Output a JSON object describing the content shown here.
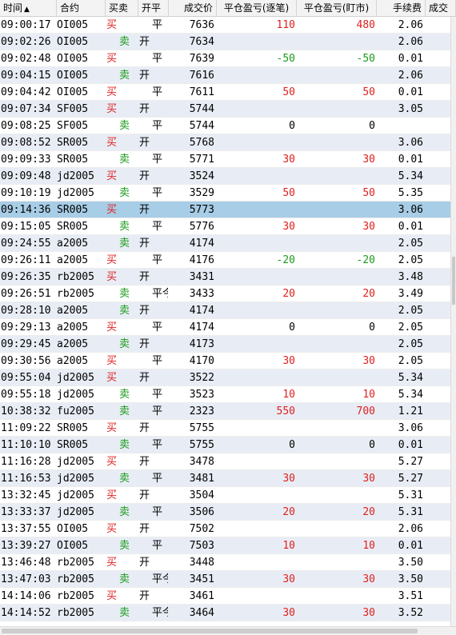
{
  "columns": {
    "time": "时间",
    "symbol": "合约",
    "buy_sell": "买卖",
    "open_close": "开平",
    "price": "成交价",
    "pnl_per_trade": "平仓盈亏(逐笔)",
    "pnl_mark": "平仓盈亏(盯市)",
    "fee": "手续费",
    "trade": "成交"
  },
  "sort_icon": "sort-ascending-icon",
  "colors": {
    "buy": "#e02020",
    "sell": "#1a9a1a",
    "selected_row": "#a8cde6",
    "alt_row": "#e8edf5"
  },
  "selected_row_index": 11,
  "rows": [
    {
      "time": "09:00:17",
      "symbol": "OI005",
      "bs": "买",
      "oc": "平",
      "price": "7636",
      "p1": "110",
      "p2": "480",
      "fee": "2.06"
    },
    {
      "time": "09:02:26",
      "symbol": "OI005",
      "bs": "卖",
      "oc": "开",
      "price": "7634",
      "p1": "",
      "p2": "",
      "fee": "2.06"
    },
    {
      "time": "09:02:48",
      "symbol": "OI005",
      "bs": "买",
      "oc": "平",
      "price": "7639",
      "p1": "-50",
      "p2": "-50",
      "fee": "0.01"
    },
    {
      "time": "09:04:15",
      "symbol": "OI005",
      "bs": "卖",
      "oc": "开",
      "price": "7616",
      "p1": "",
      "p2": "",
      "fee": "2.06"
    },
    {
      "time": "09:04:42",
      "symbol": "OI005",
      "bs": "买",
      "oc": "平",
      "price": "7611",
      "p1": "50",
      "p2": "50",
      "fee": "0.01"
    },
    {
      "time": "09:07:34",
      "symbol": "SF005",
      "bs": "买",
      "oc": "开",
      "price": "5744",
      "p1": "",
      "p2": "",
      "fee": "3.05"
    },
    {
      "time": "09:08:25",
      "symbol": "SF005",
      "bs": "卖",
      "oc": "平",
      "price": "5744",
      "p1": "0",
      "p2": "0",
      "fee": ""
    },
    {
      "time": "09:08:52",
      "symbol": "SR005",
      "bs": "买",
      "oc": "开",
      "price": "5768",
      "p1": "",
      "p2": "",
      "fee": "3.06"
    },
    {
      "time": "09:09:33",
      "symbol": "SR005",
      "bs": "卖",
      "oc": "平",
      "price": "5771",
      "p1": "30",
      "p2": "30",
      "fee": "0.01"
    },
    {
      "time": "09:09:48",
      "symbol": "jd2005",
      "bs": "买",
      "oc": "开",
      "price": "3524",
      "p1": "",
      "p2": "",
      "fee": "5.34"
    },
    {
      "time": "09:10:19",
      "symbol": "jd2005",
      "bs": "卖",
      "oc": "平",
      "price": "3529",
      "p1": "50",
      "p2": "50",
      "fee": "5.35"
    },
    {
      "time": "09:14:36",
      "symbol": "SR005",
      "bs": "买",
      "oc": "开",
      "price": "5773",
      "p1": "",
      "p2": "",
      "fee": "3.06"
    },
    {
      "time": "09:15:05",
      "symbol": "SR005",
      "bs": "卖",
      "oc": "平",
      "price": "5776",
      "p1": "30",
      "p2": "30",
      "fee": "0.01"
    },
    {
      "time": "09:24:55",
      "symbol": "a2005",
      "bs": "卖",
      "oc": "开",
      "price": "4174",
      "p1": "",
      "p2": "",
      "fee": "2.05"
    },
    {
      "time": "09:26:11",
      "symbol": "a2005",
      "bs": "买",
      "oc": "平",
      "price": "4176",
      "p1": "-20",
      "p2": "-20",
      "fee": "2.05"
    },
    {
      "time": "09:26:35",
      "symbol": "rb2005",
      "bs": "买",
      "oc": "开",
      "price": "3431",
      "p1": "",
      "p2": "",
      "fee": "3.48"
    },
    {
      "time": "09:26:51",
      "symbol": "rb2005",
      "bs": "卖",
      "oc": "平今",
      "price": "3433",
      "p1": "20",
      "p2": "20",
      "fee": "3.49"
    },
    {
      "time": "09:28:10",
      "symbol": "a2005",
      "bs": "卖",
      "oc": "开",
      "price": "4174",
      "p1": "",
      "p2": "",
      "fee": "2.05"
    },
    {
      "time": "09:29:13",
      "symbol": "a2005",
      "bs": "买",
      "oc": "平",
      "price": "4174",
      "p1": "0",
      "p2": "0",
      "fee": "2.05"
    },
    {
      "time": "09:29:45",
      "symbol": "a2005",
      "bs": "卖",
      "oc": "开",
      "price": "4173",
      "p1": "",
      "p2": "",
      "fee": "2.05"
    },
    {
      "time": "09:30:56",
      "symbol": "a2005",
      "bs": "买",
      "oc": "平",
      "price": "4170",
      "p1": "30",
      "p2": "30",
      "fee": "2.05"
    },
    {
      "time": "09:55:04",
      "symbol": "jd2005",
      "bs": "买",
      "oc": "开",
      "price": "3522",
      "p1": "",
      "p2": "",
      "fee": "5.34"
    },
    {
      "time": "09:55:18",
      "symbol": "jd2005",
      "bs": "卖",
      "oc": "平",
      "price": "3523",
      "p1": "10",
      "p2": "10",
      "fee": "5.34"
    },
    {
      "time": "10:38:32",
      "symbol": "fu2005",
      "bs": "卖",
      "oc": "平",
      "price": "2323",
      "p1": "550",
      "p2": "700",
      "fee": "1.21"
    },
    {
      "time": "11:09:22",
      "symbol": "SR005",
      "bs": "买",
      "oc": "开",
      "price": "5755",
      "p1": "",
      "p2": "",
      "fee": "3.06"
    },
    {
      "time": "11:10:10",
      "symbol": "SR005",
      "bs": "卖",
      "oc": "平",
      "price": "5755",
      "p1": "0",
      "p2": "0",
      "fee": "0.01"
    },
    {
      "time": "11:16:28",
      "symbol": "jd2005",
      "bs": "买",
      "oc": "开",
      "price": "3478",
      "p1": "",
      "p2": "",
      "fee": "5.27"
    },
    {
      "time": "11:16:53",
      "symbol": "jd2005",
      "bs": "卖",
      "oc": "平",
      "price": "3481",
      "p1": "30",
      "p2": "30",
      "fee": "5.27"
    },
    {
      "time": "13:32:45",
      "symbol": "jd2005",
      "bs": "买",
      "oc": "开",
      "price": "3504",
      "p1": "",
      "p2": "",
      "fee": "5.31"
    },
    {
      "time": "13:33:37",
      "symbol": "jd2005",
      "bs": "卖",
      "oc": "平",
      "price": "3506",
      "p1": "20",
      "p2": "20",
      "fee": "5.31"
    },
    {
      "time": "13:37:55",
      "symbol": "OI005",
      "bs": "买",
      "oc": "开",
      "price": "7502",
      "p1": "",
      "p2": "",
      "fee": "2.06"
    },
    {
      "time": "13:39:27",
      "symbol": "OI005",
      "bs": "卖",
      "oc": "平",
      "price": "7503",
      "p1": "10",
      "p2": "10",
      "fee": "0.01"
    },
    {
      "time": "13:46:48",
      "symbol": "rb2005",
      "bs": "买",
      "oc": "开",
      "price": "3448",
      "p1": "",
      "p2": "",
      "fee": "3.50"
    },
    {
      "time": "13:47:03",
      "symbol": "rb2005",
      "bs": "卖",
      "oc": "平今",
      "price": "3451",
      "p1": "30",
      "p2": "30",
      "fee": "3.50"
    },
    {
      "time": "14:14:06",
      "symbol": "rb2005",
      "bs": "买",
      "oc": "开",
      "price": "3461",
      "p1": "",
      "p2": "",
      "fee": "3.51"
    },
    {
      "time": "14:14:52",
      "symbol": "rb2005",
      "bs": "卖",
      "oc": "平今",
      "price": "3464",
      "p1": "30",
      "p2": "30",
      "fee": "3.52"
    }
  ]
}
